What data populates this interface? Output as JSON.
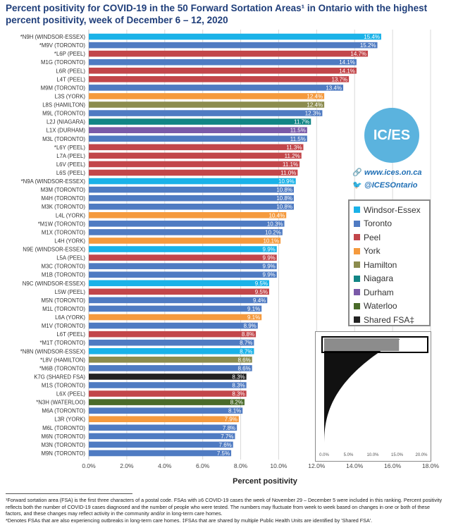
{
  "title": "Percent positivity for COVID-19 in the 50 Forward Sortation Areas¹ in Ontario with the highest percent positivity, week of December 6 – 12, 2020",
  "chart_data": {
    "type": "bar",
    "orientation": "horizontal",
    "xlabel": "Percent positivity",
    "xlim": [
      0,
      18
    ],
    "xticks": [
      "0.0%",
      "2.0%",
      "4.0%",
      "6.0%",
      "8.0%",
      "10.0%",
      "12.0%",
      "14.0%",
      "16.0%",
      "18.0%"
    ],
    "grid": true,
    "colors": {
      "Windsor-Essex": "#1ab2e8",
      "Toronto": "#4f7bc2",
      "Peel": "#c2464a",
      "York": "#f59a3d",
      "Hamilton": "#8c8c4e",
      "Niagara": "#128585",
      "Durham": "#7a5aa8",
      "Waterloo": "#4a6b2a",
      "Shared FSA‡": "#222222"
    },
    "bars": [
      {
        "label": "*N9H (WINDSOR-ESSEX)",
        "value": 15.4,
        "data_label": "15.4%",
        "group": "Windsor-Essex"
      },
      {
        "label": "*M9V (TORONTO)",
        "value": 15.2,
        "data_label": "15.2%",
        "group": "Toronto"
      },
      {
        "label": "*L6P (PEEL)",
        "value": 14.7,
        "data_label": "14.7%",
        "group": "Peel"
      },
      {
        "label": "M1G (TORONTO)",
        "value": 14.1,
        "data_label": "14.1%",
        "group": "Toronto"
      },
      {
        "label": "L6R (PEEL)",
        "value": 14.1,
        "data_label": "14.1%",
        "group": "Peel"
      },
      {
        "label": "L4T (PEEL)",
        "value": 13.7,
        "data_label": "13.7%",
        "group": "Peel"
      },
      {
        "label": "M9M (TORONTO)",
        "value": 13.4,
        "data_label": "13.4%",
        "group": "Toronto"
      },
      {
        "label": "L3S (YORK)",
        "value": 12.4,
        "data_label": "12.4%",
        "group": "York"
      },
      {
        "label": "L8S (HAMILTON)",
        "value": 12.4,
        "data_label": "12.4%",
        "group": "Hamilton"
      },
      {
        "label": "M9L (TORONTO)",
        "value": 12.3,
        "data_label": "12.3%",
        "group": "Toronto"
      },
      {
        "label": "L2J (NIAGARA)",
        "value": 11.7,
        "data_label": "11.7%",
        "group": "Niagara"
      },
      {
        "label": "L1X (DURHAM)",
        "value": 11.5,
        "data_label": "11.5%",
        "group": "Durham"
      },
      {
        "label": "M3L (TORONTO)",
        "value": 11.5,
        "data_label": "11.5%",
        "group": "Toronto"
      },
      {
        "label": "*L6Y (PEEL)",
        "value": 11.3,
        "data_label": "11.3%",
        "group": "Peel"
      },
      {
        "label": "L7A (PEEL)",
        "value": 11.2,
        "data_label": "11.2%",
        "group": "Peel"
      },
      {
        "label": "L6V (PEEL)",
        "value": 11.1,
        "data_label": "11.1%",
        "group": "Peel"
      },
      {
        "label": "L6S (PEEL)",
        "value": 11.0,
        "data_label": "11.0%",
        "group": "Peel"
      },
      {
        "label": "*N9A (WINDSOR-ESSEX)",
        "value": 10.9,
        "data_label": "10.9%",
        "group": "Windsor-Essex"
      },
      {
        "label": "M3M (TORONTO)",
        "value": 10.8,
        "data_label": "10.8%",
        "group": "Toronto"
      },
      {
        "label": "M4H (TORONTO)",
        "value": 10.8,
        "data_label": "10.8%",
        "group": "Toronto"
      },
      {
        "label": "M3K (TORONTO)",
        "value": 10.8,
        "data_label": "10.8%",
        "group": "Toronto"
      },
      {
        "label": "L4L (YORK)",
        "value": 10.4,
        "data_label": "10.4%",
        "group": "York"
      },
      {
        "label": "*M1W (TORONTO)",
        "value": 10.3,
        "data_label": "10.3%",
        "group": "Toronto"
      },
      {
        "label": "M1X (TORONTO)",
        "value": 10.2,
        "data_label": "10.2%",
        "group": "Toronto"
      },
      {
        "label": "L4H (YORK)",
        "value": 10.1,
        "data_label": "10.1%",
        "group": "York"
      },
      {
        "label": "N9E (WINDSOR-ESSEX)",
        "value": 9.9,
        "data_label": "9.9%",
        "group": "Windsor-Essex"
      },
      {
        "label": "L5A (PEEL)",
        "value": 9.9,
        "data_label": "9.9%",
        "group": "Peel"
      },
      {
        "label": "M3C (TORONTO)",
        "value": 9.9,
        "data_label": "9.9%",
        "group": "Toronto"
      },
      {
        "label": "M1B (TORONTO)",
        "value": 9.9,
        "data_label": "9.9%",
        "group": "Toronto"
      },
      {
        "label": "N9C (WINDSOR-ESSEX)",
        "value": 9.5,
        "data_label": "9.5%",
        "group": "Windsor-Essex"
      },
      {
        "label": "L5W (PEEL)",
        "value": 9.5,
        "data_label": "9.5%",
        "group": "Peel"
      },
      {
        "label": "M5N (TORONTO)",
        "value": 9.4,
        "data_label": "9.4%",
        "group": "Toronto"
      },
      {
        "label": "M1L (TORONTO)",
        "value": 9.1,
        "data_label": "9.1%",
        "group": "Toronto"
      },
      {
        "label": "L6A (YORK)",
        "value": 9.1,
        "data_label": "9.1%",
        "group": "York"
      },
      {
        "label": "M1V (TORONTO)",
        "value": 8.9,
        "data_label": "8.9%",
        "group": "Toronto"
      },
      {
        "label": "L6T (PEEL)",
        "value": 8.8,
        "data_label": "8.8%",
        "group": "Peel"
      },
      {
        "label": "*M1T (TORONTO)",
        "value": 8.7,
        "data_label": "8.7%",
        "group": "Toronto"
      },
      {
        "label": "*N8N (WINDSOR-ESSEX)",
        "value": 8.7,
        "data_label": "8.7%",
        "group": "Windsor-Essex"
      },
      {
        "label": "*L8V (HAMILTON)",
        "value": 8.6,
        "data_label": "8.6%",
        "group": "Hamilton"
      },
      {
        "label": "*M6B (TORONTO)",
        "value": 8.6,
        "data_label": "8.6%",
        "group": "Toronto"
      },
      {
        "label": "K7G (SHARED FSA)",
        "value": 8.3,
        "data_label": "8.3%",
        "group": "Shared FSA‡"
      },
      {
        "label": "M1S (TORONTO)",
        "value": 8.3,
        "data_label": "8.3%",
        "group": "Toronto"
      },
      {
        "label": "L6X (PEEL)",
        "value": 8.3,
        "data_label": "8.3%",
        "group": "Peel"
      },
      {
        "label": "*N3H (WATERLOO)",
        "value": 8.2,
        "data_label": "8.2%",
        "group": "Waterloo"
      },
      {
        "label": "M6A (TORONTO)",
        "value": 8.1,
        "data_label": "8.1%",
        "group": "Toronto"
      },
      {
        "label": "L3R (YORK)",
        "value": 7.9,
        "data_label": "7.9%",
        "group": "York"
      },
      {
        "label": "M6L (TORONTO)",
        "value": 7.8,
        "data_label": "7.8%",
        "group": "Toronto"
      },
      {
        "label": "M6N (TORONTO)",
        "value": 7.7,
        "data_label": "7.7%",
        "group": "Toronto"
      },
      {
        "label": "M3N (TORONTO)",
        "value": 7.6,
        "data_label": "7.6%",
        "group": "Toronto"
      },
      {
        "label": "M9N (TORONTO)",
        "value": 7.5,
        "data_label": "7.5%",
        "group": "Toronto"
      }
    ],
    "inset": {
      "type": "bar",
      "orientation": "horizontal",
      "xticks": [
        "0.0%",
        "5.0%",
        "10.0%",
        "15.0%",
        "20.0%"
      ],
      "xlim": [
        0,
        20
      ],
      "highlight": "top 50 FSAs (boxed)"
    }
  },
  "legend": {
    "placement": "right",
    "items": [
      {
        "label": "Windsor-Essex",
        "color": "#1ab2e8"
      },
      {
        "label": "Toronto",
        "color": "#4f7bc2"
      },
      {
        "label": "Peel",
        "color": "#c2464a"
      },
      {
        "label": "York",
        "color": "#f59a3d"
      },
      {
        "label": "Hamilton",
        "color": "#8c8c4e"
      },
      {
        "label": "Niagara",
        "color": "#128585"
      },
      {
        "label": "Durham",
        "color": "#7a5aa8"
      },
      {
        "label": "Waterloo",
        "color": "#4a6b2a"
      },
      {
        "label": "Shared FSA‡",
        "color": "#222222"
      }
    ]
  },
  "branding": {
    "logo_text": "IC/ES",
    "website": "www.ices.on.ca",
    "twitter": "@ICESOntario",
    "link_icon": "link-icon",
    "twitter_icon": "twitter-bird-icon"
  },
  "footnote": {
    "line1": "¹Forward sortation area (FSA) is the first three characters of a postal code. FSAs with ≥6 COVID-19 cases the week of November 29 – December 5 were included in this ranking. Percent positivity reflects both the number of COVID-19 cases diagnosed and the number of people who were tested. The numbers may fluctuate from week to week based on changes in one or both of these factors, and these changes may reflect activity in the community and/or in long-term care homes.",
    "line2": "*Denotes FSAs that are also experiencing outbreaks in long-term care homes. ‡FSAs that are shared by multiple Public Health Units are identified by 'Shared FSA'."
  }
}
